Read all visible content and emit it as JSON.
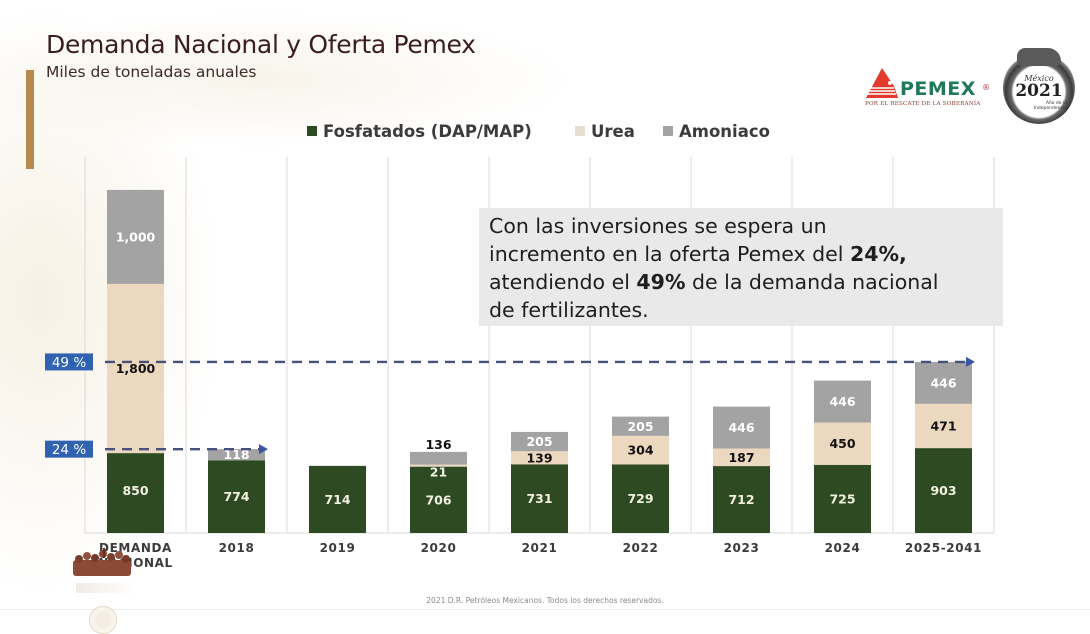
{
  "slide": {
    "title": "Demanda Nacional y Oferta Pemex",
    "subtitle": "Miles de toneladas anuales",
    "footer": "2021 D.R. Petróleos Mexicanos. Todos los derechos reservados.",
    "logo": {
      "brand": "PEMEX",
      "registered": "®",
      "tagline": "POR EL RESCATE DE LA SOBERANÍA"
    },
    "medallion": {
      "top": "México",
      "year": "2021",
      "sub": "Año de la Independencia"
    },
    "callout": {
      "line1": "Con las inversiones se espera un",
      "line2_pre": "incremento en la oferta Pemex del ",
      "line2_bold": "24%,",
      "line3_pre": "atendiendo el ",
      "line3_bold": "49%",
      "line3_post": " de la demanda nacional",
      "line4": "de fertilizantes."
    },
    "colors": {
      "fosfatados": "#2e4a22",
      "urea": "#ecd7bf",
      "amoniaco": "#a3a3a3",
      "accent_gold": "#b68a4a",
      "annotation_blue": "#2f62b0",
      "annotation_line": "#45527a"
    }
  },
  "chart_data": {
    "type": "bar",
    "stacked": true,
    "title": "Demanda Nacional y Oferta Pemex",
    "subtitle": "Miles de toneladas anuales",
    "xlabel": "",
    "ylabel": "",
    "ylim": [
      0,
      4000
    ],
    "grid": "vertical",
    "legend_position": "top-center",
    "categories": [
      "DEMANDA NACIONAL",
      "2018",
      "2019",
      "2020",
      "2021",
      "2022",
      "2023",
      "2024",
      "2025-2041"
    ],
    "series": [
      {
        "name": "Fosfatados (DAP/MAP)",
        "color": "#2e4a22",
        "label_color": "#f3f1e2",
        "values": [
          850,
          774,
          714,
          706,
          731,
          729,
          712,
          725,
          903
        ]
      },
      {
        "name": "Urea",
        "color": "#ecd7bf",
        "label_color": "#111111",
        "values": [
          1800,
          0,
          0,
          21,
          139,
          304,
          187,
          450,
          471
        ]
      },
      {
        "name": "Amoniaco",
        "color": "#a3a3a3",
        "label_color": "#ffffff",
        "values": [
          1000,
          118,
          0,
          136,
          205,
          205,
          446,
          446,
          446
        ]
      }
    ],
    "data_labels": [
      [
        "850",
        "1,800",
        "1,000"
      ],
      [
        "774",
        "",
        "118"
      ],
      [
        "714",
        "",
        ""
      ],
      [
        "706",
        "21",
        "136"
      ],
      [
        "731",
        "139",
        "205"
      ],
      [
        "729",
        "304",
        "205"
      ],
      [
        "712",
        "187",
        "446"
      ],
      [
        "725",
        "450",
        "446"
      ],
      [
        "903",
        "471",
        "446"
      ]
    ],
    "annotations": [
      {
        "label": "49 %",
        "value": 1820,
        "to_category": "2025-2041"
      },
      {
        "label": "24 %",
        "value": 892,
        "to_category": "2018"
      }
    ]
  }
}
